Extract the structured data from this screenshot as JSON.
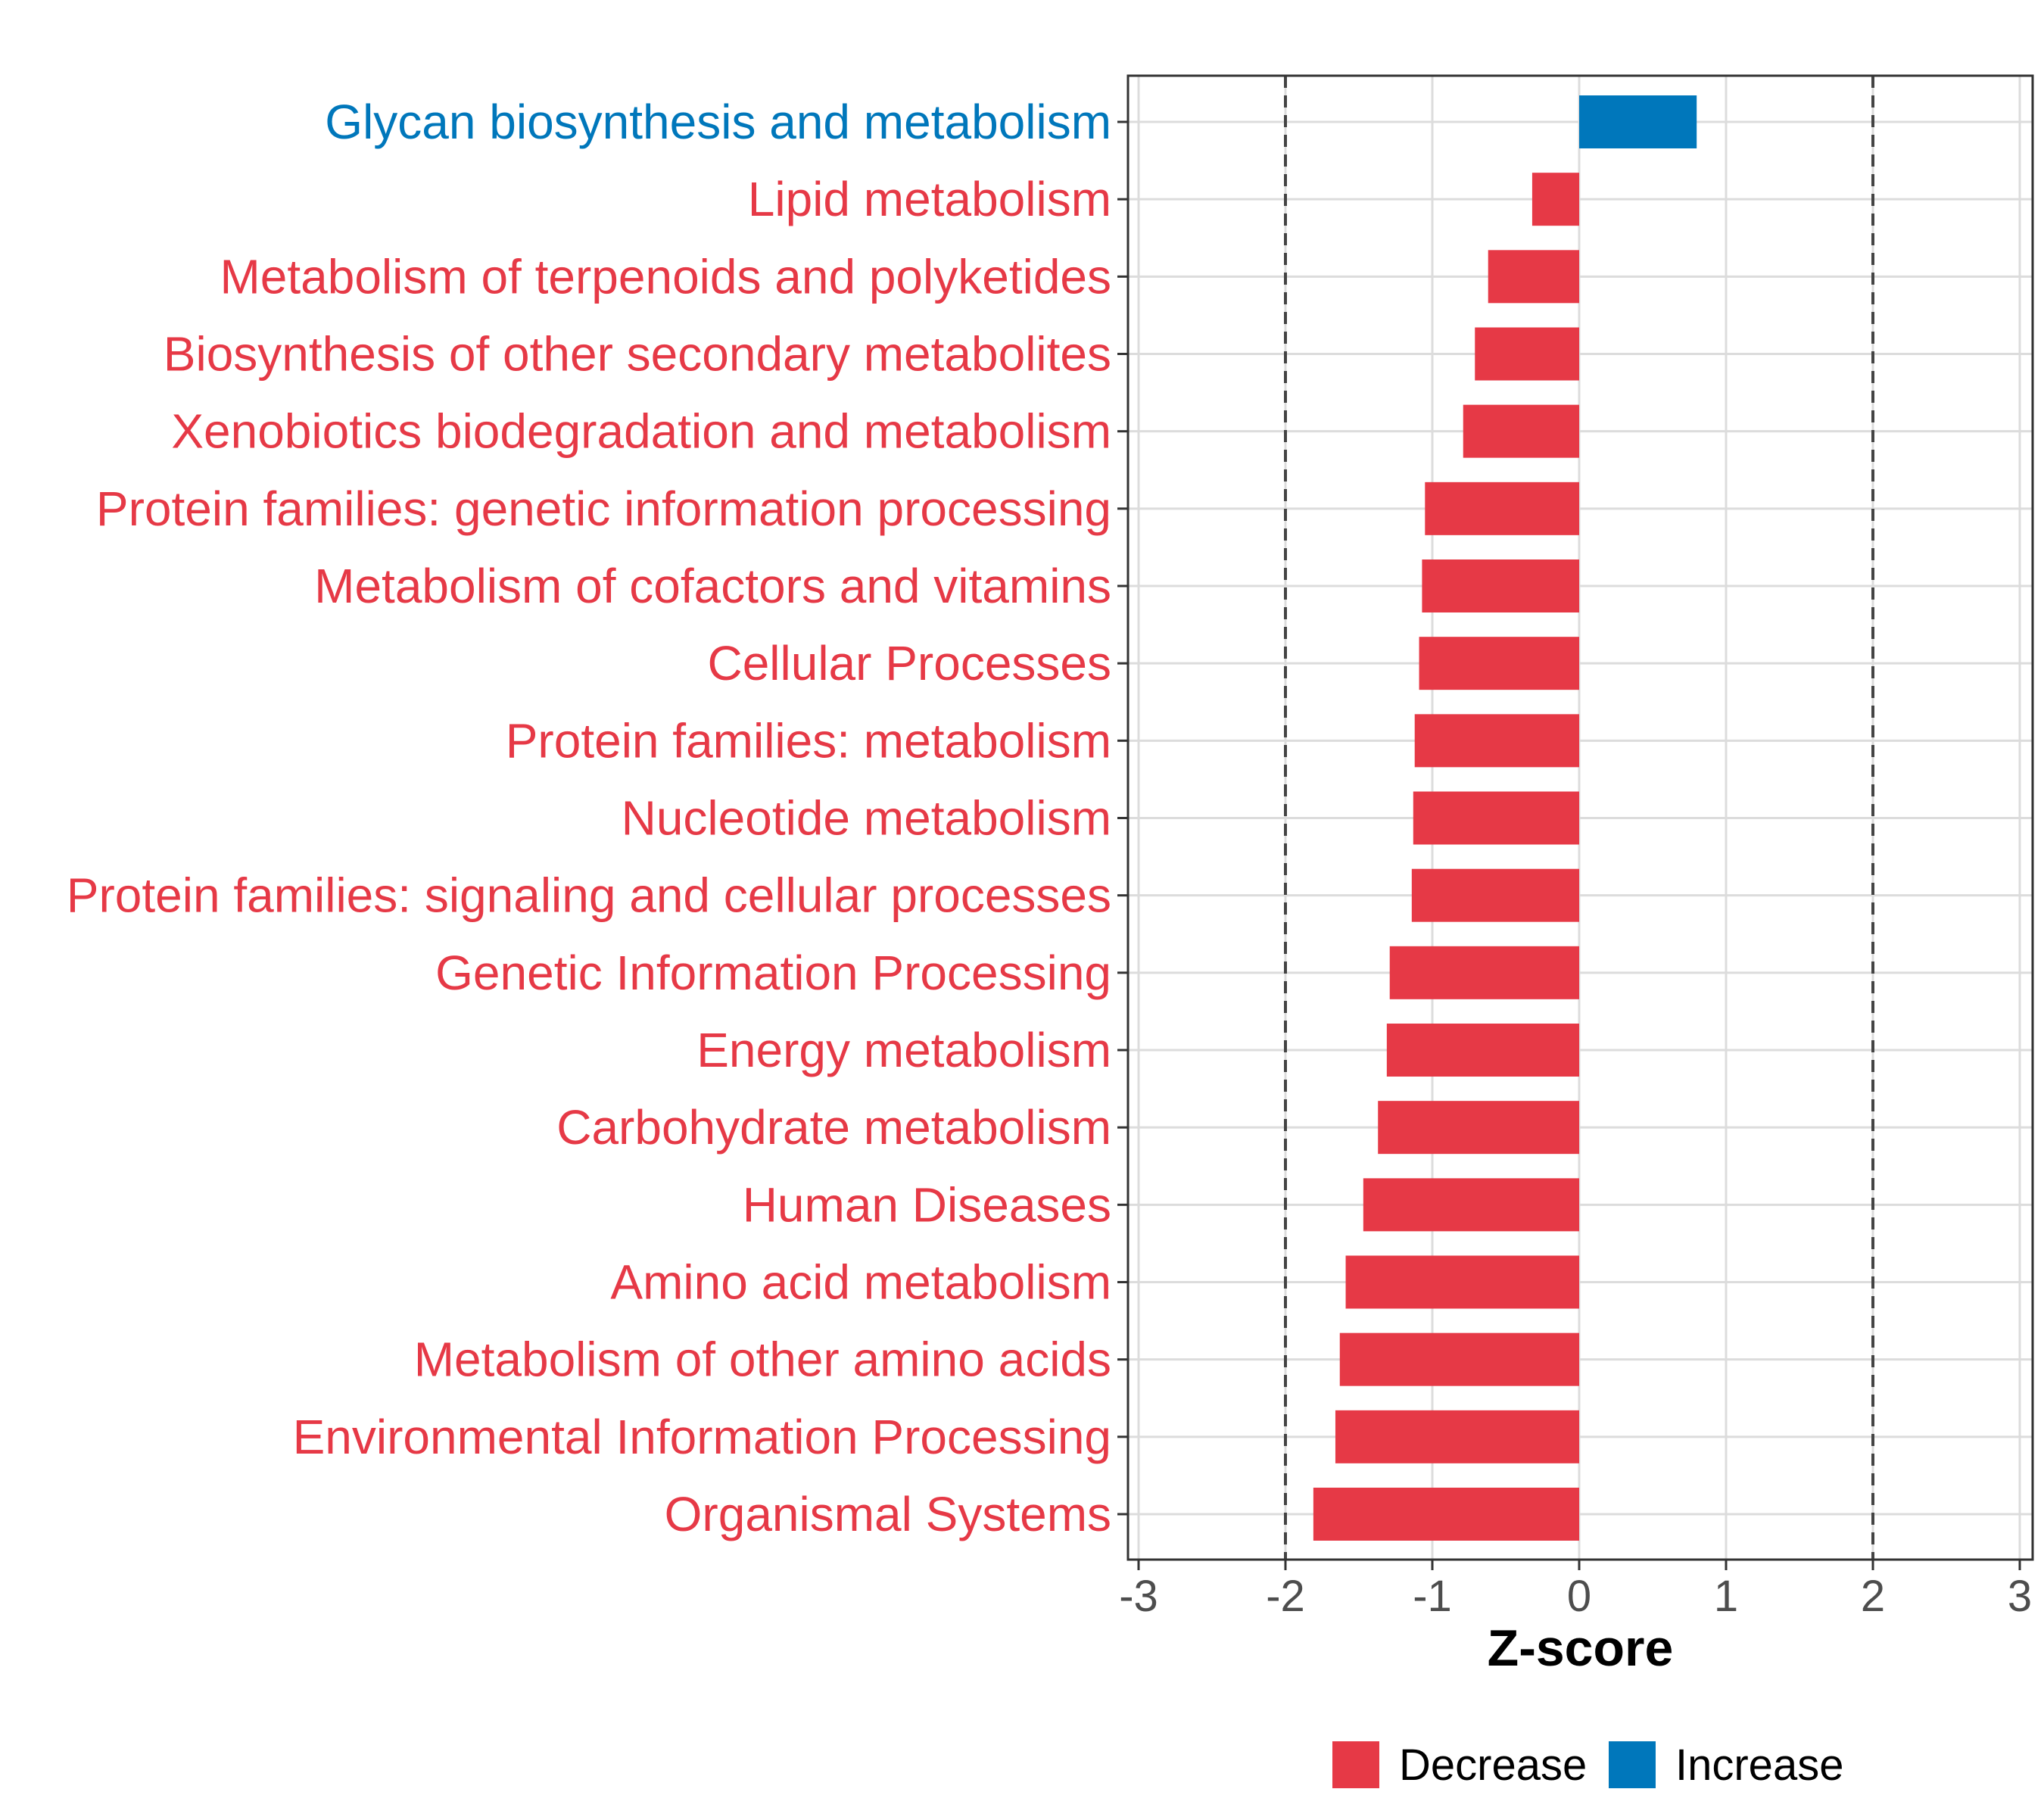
{
  "chart_data": {
    "type": "bar",
    "orientation": "horizontal",
    "title": "",
    "xlabel": "Z-score",
    "ylabel": "",
    "xlim": [
      -3,
      3
    ],
    "xticks": [
      -3,
      -2,
      -1,
      0,
      1,
      2,
      3
    ],
    "xtick_labels": [
      "-3",
      "-2",
      "-1",
      "0",
      "1",
      "2",
      "3"
    ],
    "reference_lines": [
      -2,
      2
    ],
    "grid": true,
    "categories": [
      "Glycan biosynthesis and metabolism",
      "Lipid metabolism",
      "Metabolism of terpenoids and polyketides",
      "Biosynthesis of other secondary metabolites",
      "Xenobiotics biodegradation and metabolism",
      "Protein families: genetic information processing",
      "Metabolism of cofactors and vitamins",
      "Cellular Processes",
      "Protein families: metabolism",
      "Nucleotide metabolism",
      "Protein families: signaling and cellular processes",
      "Genetic Information Processing",
      "Energy metabolism",
      "Carbohydrate metabolism",
      "Human Diseases",
      "Amino acid metabolism",
      "Metabolism of other amino acids",
      "Environmental Information Processing",
      "Organismal Systems"
    ],
    "values": [
      0.8,
      -0.32,
      -0.62,
      -0.71,
      -0.79,
      -1.05,
      -1.07,
      -1.09,
      -1.12,
      -1.13,
      -1.14,
      -1.29,
      -1.31,
      -1.37,
      -1.47,
      -1.59,
      -1.63,
      -1.66,
      -1.81
    ],
    "groups": [
      "Increase",
      "Decrease",
      "Decrease",
      "Decrease",
      "Decrease",
      "Decrease",
      "Decrease",
      "Decrease",
      "Decrease",
      "Decrease",
      "Decrease",
      "Decrease",
      "Decrease",
      "Decrease",
      "Decrease",
      "Decrease",
      "Decrease",
      "Decrease",
      "Decrease"
    ],
    "legend": [
      {
        "label": "Decrease",
        "color": "#e63946"
      },
      {
        "label": "Increase",
        "color": "#0077bb"
      }
    ],
    "legend_position": "bottom",
    "colors": {
      "Decrease": "#e63946",
      "Increase": "#0077bb"
    }
  }
}
